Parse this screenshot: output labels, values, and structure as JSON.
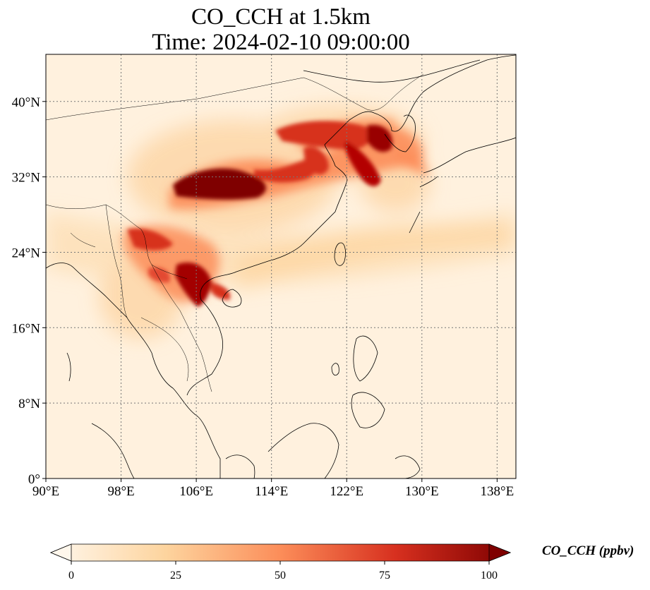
{
  "title_line1": "CO_CCH at 1.5km",
  "title_line2": "Time: 2024-02-10 09:00:00",
  "map": {
    "lon_range": [
      90,
      140
    ],
    "lat_range": [
      0,
      45
    ],
    "lon_ticks": [
      {
        "value": 90,
        "label": "90°E"
      },
      {
        "value": 98,
        "label": "98°E"
      },
      {
        "value": 106,
        "label": "106°E"
      },
      {
        "value": 114,
        "label": "114°E"
      },
      {
        "value": 122,
        "label": "122°E"
      },
      {
        "value": 130,
        "label": "130°E"
      },
      {
        "value": 138,
        "label": "138°E"
      }
    ],
    "lat_ticks": [
      {
        "value": 0,
        "label": "0°"
      },
      {
        "value": 8,
        "label": "8°N"
      },
      {
        "value": 16,
        "label": "16°N"
      },
      {
        "value": 24,
        "label": "24°N"
      },
      {
        "value": 32,
        "label": "32°N"
      },
      {
        "value": 40,
        "label": "40°N"
      }
    ],
    "gridlines": true,
    "colormap": "OrRd",
    "colors": [
      "#fff7ec",
      "#fdd49e",
      "#fc8d59",
      "#d7301f",
      "#7f0000"
    ]
  },
  "colorbar": {
    "label": "CO_CCH (ppbv)",
    "min": 0,
    "max": 100,
    "extend": "both",
    "ticks": [
      {
        "value": 0,
        "label": "0"
      },
      {
        "value": 25,
        "label": "25"
      },
      {
        "value": 50,
        "label": "50"
      },
      {
        "value": 75,
        "label": "75"
      },
      {
        "value": 100,
        "label": "100"
      }
    ]
  }
}
